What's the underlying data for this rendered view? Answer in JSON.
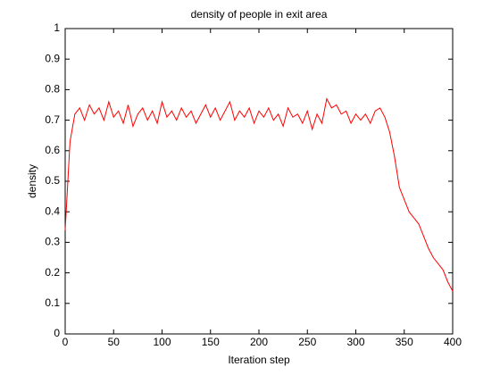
{
  "chart_data": {
    "type": "line",
    "title": "density of people in exit area",
    "x_label": "Iteration step",
    "y_label": "density",
    "x": [
      0,
      5,
      10,
      15,
      20,
      25,
      30,
      35,
      40,
      45,
      50,
      55,
      60,
      65,
      70,
      75,
      80,
      85,
      90,
      95,
      100,
      105,
      110,
      115,
      120,
      125,
      130,
      135,
      140,
      145,
      150,
      155,
      160,
      165,
      170,
      175,
      180,
      185,
      190,
      195,
      200,
      205,
      210,
      215,
      220,
      225,
      230,
      235,
      240,
      245,
      250,
      255,
      260,
      265,
      270,
      275,
      280,
      285,
      290,
      295,
      300,
      305,
      310,
      315,
      320,
      325,
      330,
      335,
      340,
      345,
      350,
      355,
      360,
      365,
      370,
      375,
      380,
      385,
      390,
      395,
      400
    ],
    "series": [
      {
        "color": "#ff0000",
        "values": [
          0.34,
          0.63,
          0.72,
          0.74,
          0.7,
          0.75,
          0.72,
          0.74,
          0.7,
          0.76,
          0.71,
          0.73,
          0.69,
          0.75,
          0.68,
          0.72,
          0.74,
          0.7,
          0.73,
          0.69,
          0.76,
          0.71,
          0.73,
          0.7,
          0.74,
          0.71,
          0.73,
          0.69,
          0.72,
          0.75,
          0.71,
          0.74,
          0.7,
          0.73,
          0.76,
          0.7,
          0.73,
          0.71,
          0.74,
          0.69,
          0.73,
          0.71,
          0.74,
          0.7,
          0.72,
          0.68,
          0.74,
          0.71,
          0.72,
          0.69,
          0.73,
          0.67,
          0.72,
          0.69,
          0.77,
          0.74,
          0.75,
          0.72,
          0.73,
          0.69,
          0.72,
          0.7,
          0.72,
          0.69,
          0.73,
          0.74,
          0.71,
          0.66,
          0.58,
          0.48,
          0.44,
          0.4,
          0.38,
          0.36,
          0.32,
          0.28,
          0.25,
          0.23,
          0.21,
          0.17,
          0.14
        ]
      }
    ],
    "xlim": [
      0,
      400
    ],
    "xticks": [
      0,
      50,
      100,
      150,
      200,
      250,
      300,
      350,
      400
    ],
    "ylim": [
      0,
      1
    ],
    "yticks": [
      0,
      0.1,
      0.2,
      0.3,
      0.4,
      0.5,
      0.6,
      0.7,
      0.8,
      0.9,
      1
    ],
    "grid": false
  }
}
